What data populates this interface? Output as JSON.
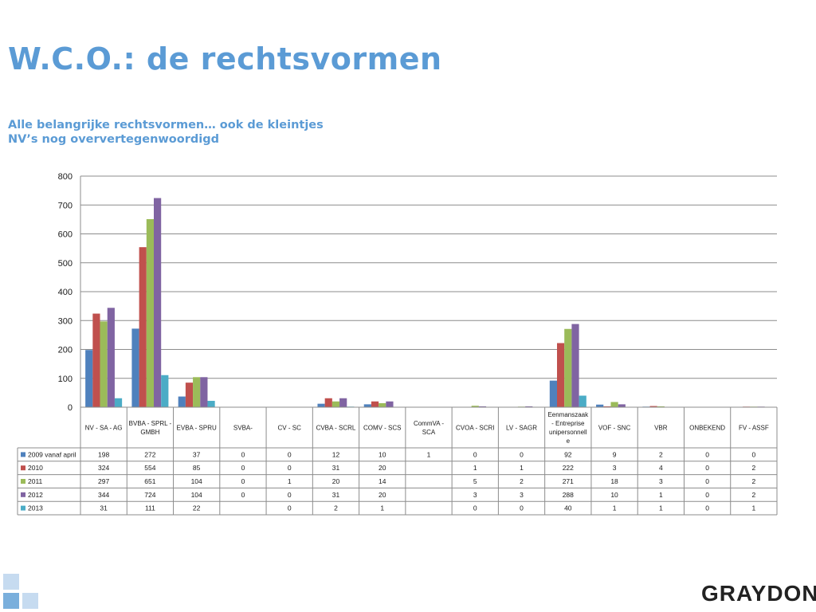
{
  "colors": {
    "title": "#5b9bd5",
    "text": "#1a1a1a",
    "grid": "#8c8c8c",
    "border": "#8c8c8c",
    "logo": "#222222",
    "corner_squares": [
      "#c6dbf0",
      "#7aafdc"
    ]
  },
  "page": {
    "title": "W.C.O.: de rechtsvormen",
    "subtitle_lines": [
      "Alle belangrijke rechtsvormen… ook de kleintjes",
      "NV’s nog oververtegenwoordigd"
    ],
    "logo_text": "GRAYDON"
  },
  "chart_data": {
    "type": "bar",
    "title": "",
    "xlabel": "",
    "ylabel": "",
    "ylim": [
      0,
      800
    ],
    "yticks": [
      0,
      100,
      200,
      300,
      400,
      500,
      600,
      700,
      800
    ],
    "grid": true,
    "legend": "table-rows",
    "categories": [
      "NV - SA - AG",
      "BVBA - SPRL - GMBH",
      "EVBA - SPRU",
      "SVBA-",
      "CV - SC",
      "CVBA - SCRL",
      "COMV - SCS",
      "CommVA - SCA",
      "CVOA - SCRI",
      "LV - SAGR",
      "Eenmanszaak - Entreprise unipersonnelle",
      "VOF - SNC",
      "VBR",
      "ONBEKEND",
      "FV - ASSF"
    ],
    "category_label_lines": [
      [
        "NV - SA - AG"
      ],
      [
        "BVBA - SPRL -",
        "GMBH"
      ],
      [
        "EVBA - SPRU"
      ],
      [
        "SVBA-"
      ],
      [
        "CV - SC"
      ],
      [
        "CVBA - SCRL"
      ],
      [
        "COMV - SCS"
      ],
      [
        "CommVA -",
        "SCA"
      ],
      [
        "CVOA - SCRI"
      ],
      [
        "LV - SAGR"
      ],
      [
        "Eenmanszaak",
        "- Entreprise",
        "unipersonnell",
        "e"
      ],
      [
        "VOF - SNC"
      ],
      [
        "VBR"
      ],
      [
        "ONBEKEND"
      ],
      [
        "FV - ASSF"
      ]
    ],
    "series": [
      {
        "name": "2009 vanaf april",
        "color": "#4f81bd",
        "values": [
          198,
          272,
          37,
          0,
          0,
          12,
          10,
          1,
          0,
          0,
          92,
          9,
          2,
          0,
          0
        ]
      },
      {
        "name": "2010",
        "color": "#c0504d",
        "values": [
          324,
          554,
          85,
          0,
          0,
          31,
          20,
          null,
          1,
          1,
          222,
          3,
          4,
          0,
          2
        ]
      },
      {
        "name": "2011",
        "color": "#9bbb59",
        "values": [
          297,
          651,
          104,
          0,
          1,
          20,
          14,
          null,
          5,
          2,
          271,
          18,
          3,
          0,
          2
        ]
      },
      {
        "name": "2012",
        "color": "#8064a2",
        "values": [
          344,
          724,
          104,
          0,
          0,
          31,
          20,
          null,
          3,
          3,
          288,
          10,
          1,
          0,
          2
        ]
      },
      {
        "name": "2013",
        "color": "#4bacc6",
        "values": [
          31,
          111,
          22,
          null,
          0,
          2,
          1,
          null,
          0,
          0,
          40,
          1,
          1,
          0,
          1
        ]
      }
    ]
  }
}
